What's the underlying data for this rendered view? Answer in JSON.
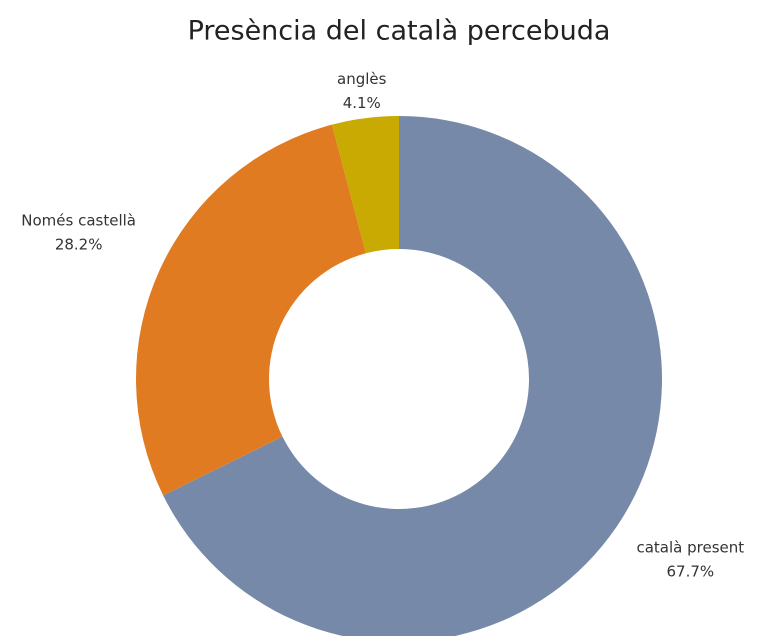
{
  "chart_data": {
    "type": "donut",
    "title": "Presència del català percebuda",
    "categories": [
      "català present",
      "Només castellà",
      "anglès"
    ],
    "values": [
      67.7,
      28.2,
      4.1
    ],
    "value_labels": [
      "67.7%",
      "28.2%",
      "4.1%"
    ],
    "colors": [
      "#7689a8",
      "#e07b22",
      "#c9aa02"
    ]
  }
}
